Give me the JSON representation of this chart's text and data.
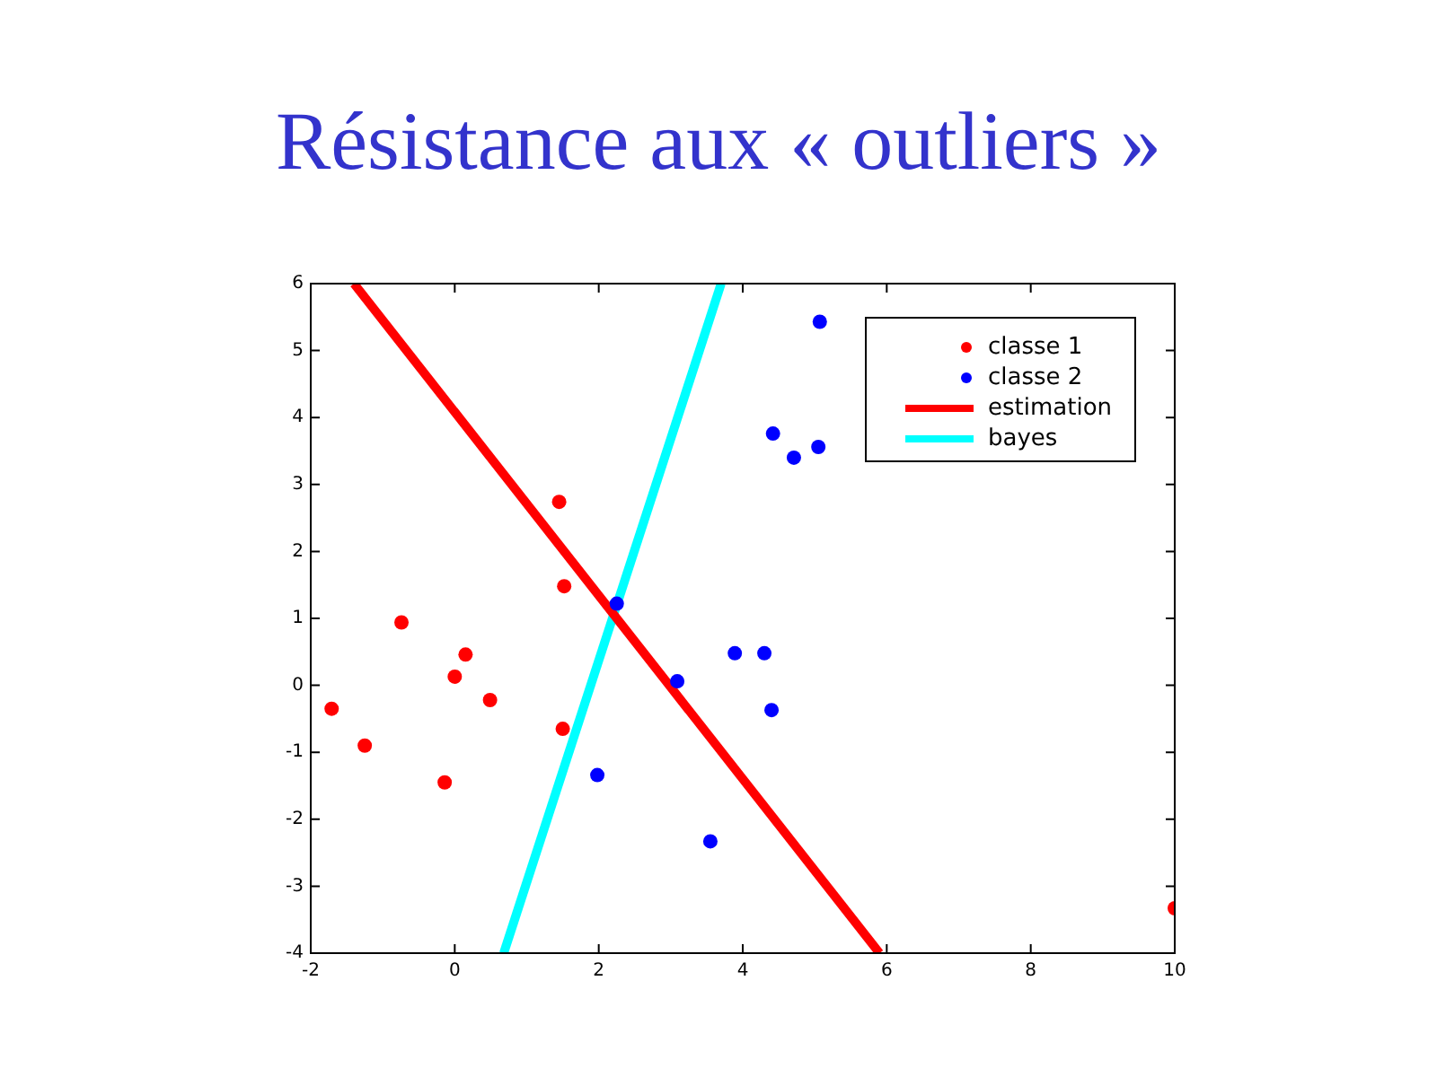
{
  "chart_data": {
    "type": "scatter",
    "title": "Résistance aux « outliers »",
    "xlim": [
      -2,
      10
    ],
    "xticks": [
      -2,
      0,
      2,
      4,
      6,
      8,
      10
    ],
    "ylim": [
      -4,
      6
    ],
    "yticks": [
      -4,
      -3,
      -2,
      -1,
      0,
      1,
      2,
      3,
      4,
      5,
      6
    ],
    "grid": false,
    "legend": "top right",
    "marker": "circle",
    "series": [
      {
        "name": "classe 1",
        "color": "#ff0000",
        "x": [
          -1.71,
          -1.25,
          -0.74,
          0.0,
          0.15,
          0.49,
          -0.14,
          1.45,
          1.52,
          1.5,
          10
        ],
        "values": [
          -0.35,
          -0.9,
          0.94,
          0.13,
          0.46,
          -0.22,
          -1.45,
          2.74,
          1.48,
          -0.65,
          -3.33
        ]
      },
      {
        "name": "classe 2",
        "color": "#0000ff",
        "x": [
          2.25,
          3.09,
          1.98,
          3.55,
          3.89,
          4.3,
          4.4,
          4.42,
          4.71,
          5.05,
          5.07
        ],
        "values": [
          1.22,
          0.06,
          -1.34,
          -2.33,
          0.48,
          0.48,
          -0.37,
          3.76,
          3.4,
          3.56,
          5.43
        ]
      },
      {
        "name": "estimation",
        "type": "line",
        "color": "#ff0000",
        "line_style": "solid",
        "marker": "none",
        "x": [
          -1.4,
          5.9
        ],
        "values": [
          6,
          -4
        ]
      },
      {
        "name": "bayes",
        "type": "line",
        "color": "#00ffff",
        "line_style": "solid",
        "marker": "none",
        "x": [
          0.68,
          3.7
        ],
        "values": [
          -4,
          6
        ]
      }
    ]
  }
}
